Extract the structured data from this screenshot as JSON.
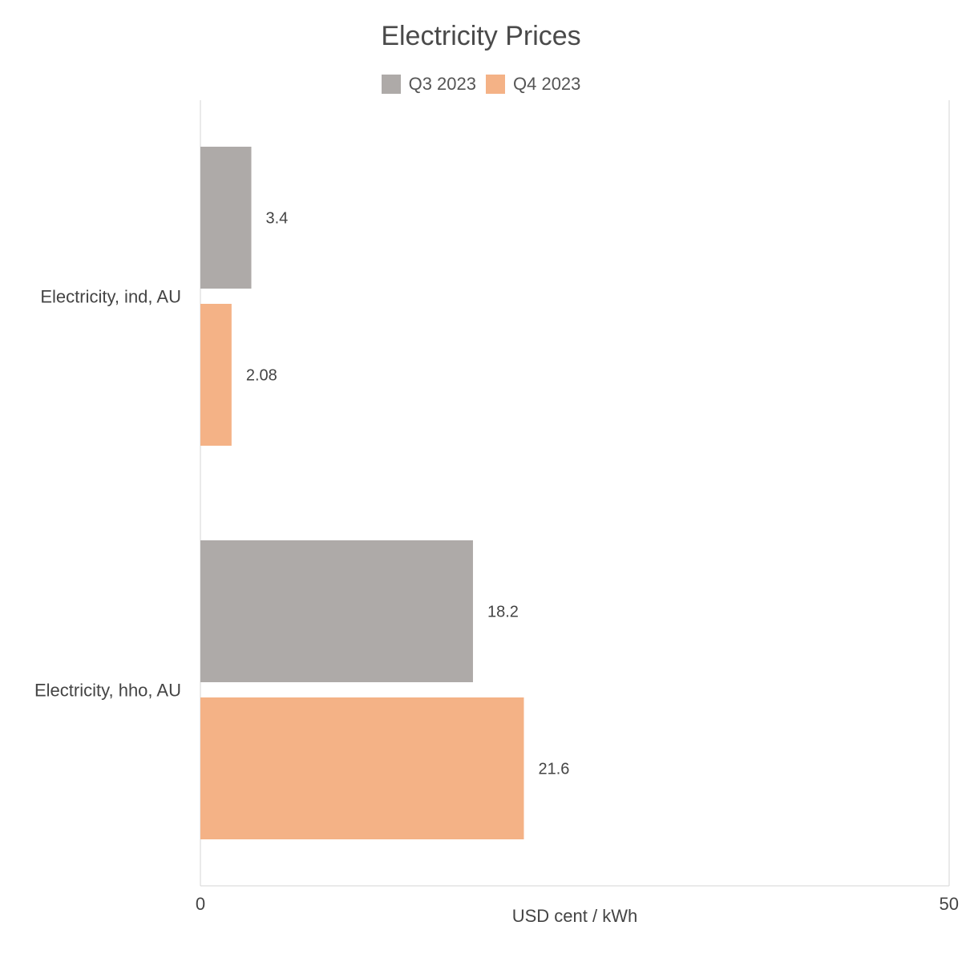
{
  "chart_data": {
    "type": "bar",
    "orientation": "horizontal",
    "title": "Electricity Prices",
    "xlabel": "USD cent / kWh",
    "ylabel": "",
    "categories": [
      "Electricity, ind, AU",
      "Electricity, hho, AU"
    ],
    "series": [
      {
        "name": "Q3 2023",
        "color": "#aeaaa8",
        "values": [
          3.4,
          18.2
        ],
        "labels": [
          "3.4",
          "18.2"
        ]
      },
      {
        "name": "Q4 2023",
        "color": "#f4b286",
        "values": [
          2.08,
          21.6
        ],
        "labels": [
          "2.08",
          "21.6"
        ]
      }
    ],
    "xlim": [
      0,
      50
    ],
    "xticks": [
      "0",
      "50"
    ],
    "legend": "top-center",
    "grid": false
  }
}
